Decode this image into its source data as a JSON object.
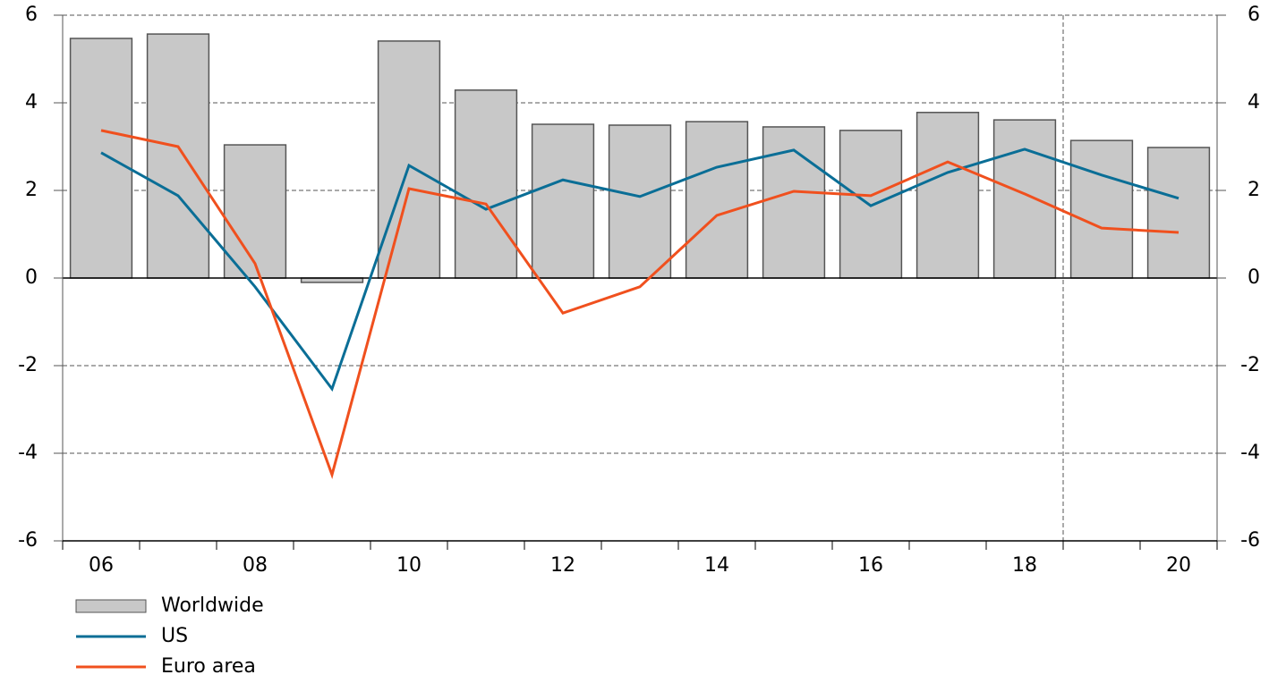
{
  "chart_data": {
    "type": "bar",
    "categories": [
      "06",
      null,
      "08",
      null,
      "10",
      null,
      "12",
      null,
      "14",
      null,
      "16",
      null,
      "18",
      null,
      "20"
    ],
    "series": [
      {
        "name": "Worldwide",
        "type": "bar",
        "color": "#c8c8c8",
        "values": [
          5.47,
          5.57,
          3.04,
          -0.1,
          5.41,
          4.29,
          3.51,
          3.49,
          3.57,
          3.45,
          3.37,
          3.78,
          3.61,
          3.14,
          2.98
        ]
      },
      {
        "name": "US",
        "type": "line",
        "color": "#0a6e96",
        "values": [
          2.86,
          1.88,
          -0.2,
          -2.53,
          2.57,
          1.57,
          2.24,
          1.86,
          2.53,
          2.92,
          1.65,
          2.41,
          2.94,
          2.35,
          1.82
        ]
      },
      {
        "name": "Euro area",
        "type": "line",
        "color": "#f0501e",
        "values": [
          3.37,
          3.0,
          0.33,
          -4.49,
          2.04,
          1.69,
          -0.8,
          -0.2,
          1.43,
          1.98,
          1.88,
          2.65,
          1.92,
          1.14,
          1.04
        ]
      }
    ],
    "ylim": [
      -6,
      6
    ],
    "yticks": [
      -6,
      -4,
      -2,
      0,
      2,
      4,
      6
    ],
    "y2lim": [
      -6,
      6
    ],
    "y2ticks": [
      -6,
      -4,
      -2,
      0,
      2,
      4,
      6
    ],
    "grid": true
  }
}
